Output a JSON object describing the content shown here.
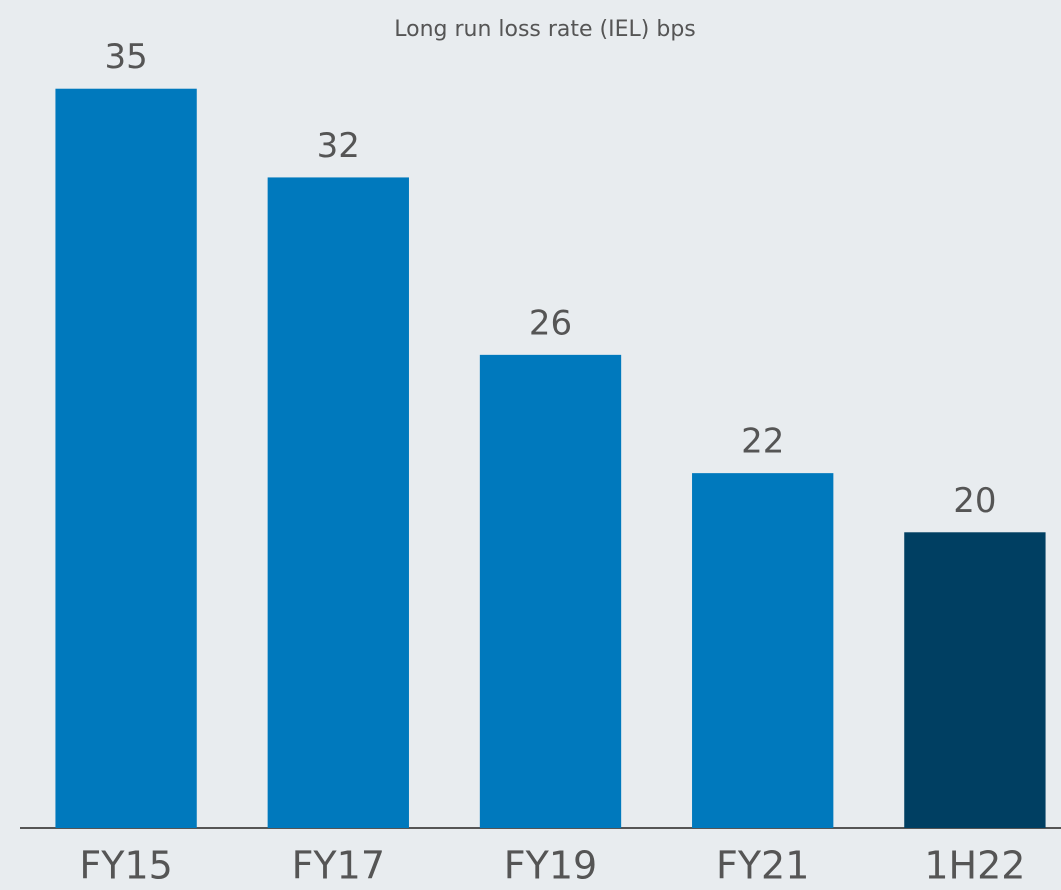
{
  "chart_data": {
    "type": "bar",
    "title": "Long run loss rate (IEL) bps",
    "categories": [
      "FY15",
      "FY17",
      "FY19",
      "FY21",
      "1H22"
    ],
    "values": [
      35,
      32,
      26,
      22,
      20
    ],
    "colors": [
      "#0079bd",
      "#0079bd",
      "#0079bd",
      "#0079bd",
      "#003f62"
    ],
    "ylim": [
      10,
      38
    ],
    "grid": false
  }
}
